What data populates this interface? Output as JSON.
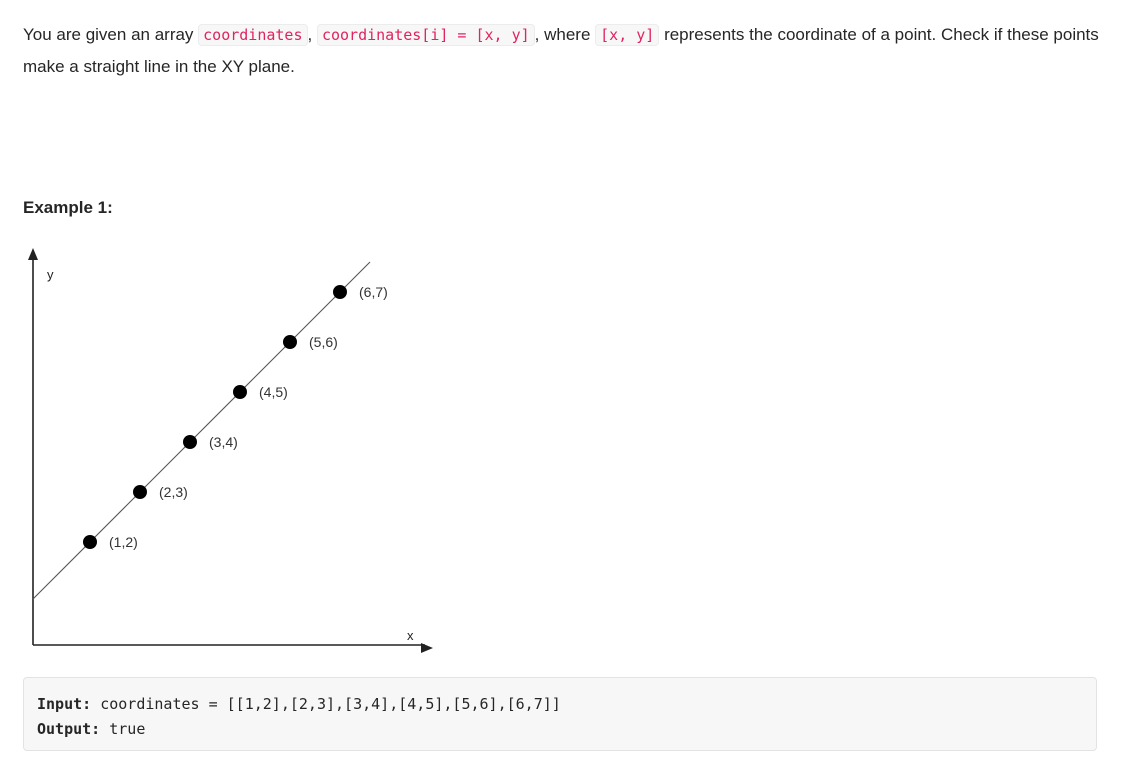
{
  "description": {
    "t1": "You are given an array ",
    "c1": "coordinates",
    "t2": ", ",
    "c2": "coordinates[i] = [x, y]",
    "t3": ", where ",
    "c3": "[x, y]",
    "t4": " represents the coordinate of a point. Check if these points make a straight line in the XY plane."
  },
  "example": {
    "title": "Example 1:",
    "input_label": "Input:",
    "input_value": " coordinates = [[1,2],[2,3],[3,4],[4,5],[5,6],[6,7]]",
    "output_label": "Output:",
    "output_value": " true"
  },
  "chart_data": {
    "type": "scatter",
    "xlabel": "x",
    "ylabel": "y",
    "points": [
      {
        "x": 1,
        "y": 2,
        "label": "(1,2)"
      },
      {
        "x": 2,
        "y": 3,
        "label": "(2,3)"
      },
      {
        "x": 3,
        "y": 4,
        "label": "(3,4)"
      },
      {
        "x": 4,
        "y": 5,
        "label": "(4,5)"
      },
      {
        "x": 5,
        "y": 6,
        "label": "(5,6)"
      },
      {
        "x": 6,
        "y": 7,
        "label": "(6,7)"
      }
    ],
    "grid": false,
    "trend_line": true
  }
}
